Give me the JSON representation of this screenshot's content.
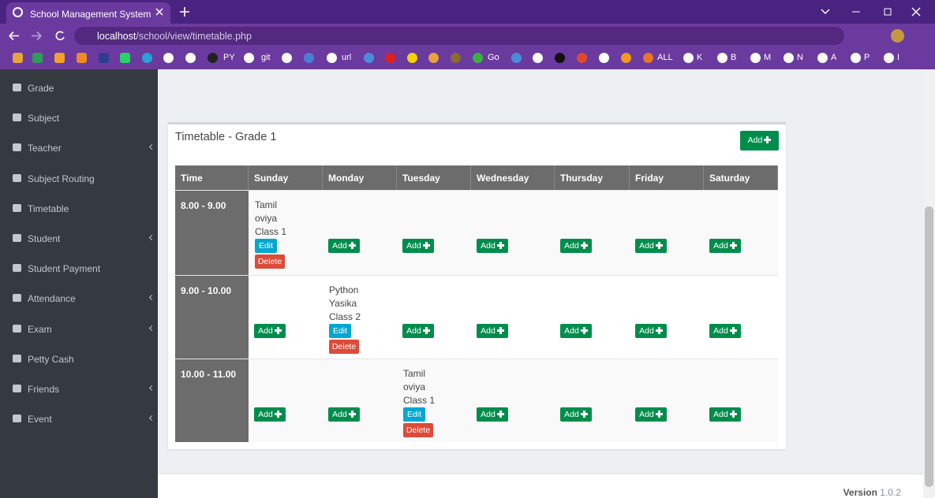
{
  "browser": {
    "tab_title": "School Management System",
    "url_host": "localhost",
    "url_path": "/school/view/timetable.php",
    "bookmarks": [
      "PY",
      "git",
      "url",
      "Go",
      "ALL",
      "K",
      "B",
      "M",
      "N",
      "A",
      "P",
      "I"
    ]
  },
  "sidebar": {
    "items": [
      {
        "label": "Grade",
        "submenu": false
      },
      {
        "label": "Subject",
        "submenu": false
      },
      {
        "label": "Teacher",
        "submenu": true
      },
      {
        "label": "Subject Routing",
        "submenu": false
      },
      {
        "label": "Timetable",
        "submenu": false
      },
      {
        "label": "Student",
        "submenu": true
      },
      {
        "label": "Student Payment",
        "submenu": false
      },
      {
        "label": "Attendance",
        "submenu": true
      },
      {
        "label": "Exam",
        "submenu": true
      },
      {
        "label": "Petty Cash",
        "submenu": false
      },
      {
        "label": "Friends",
        "submenu": true
      },
      {
        "label": "Event",
        "submenu": true
      }
    ]
  },
  "page": {
    "title": "Timetable - Grade 1",
    "add_button": "Add"
  },
  "buttons": {
    "add": "Add",
    "edit": "Edit",
    "delete": "Delete"
  },
  "table": {
    "columns": [
      "Time",
      "Sunday",
      "Monday",
      "Tuesday",
      "Wednesday",
      "Thursday",
      "Friday",
      "Saturday"
    ],
    "rows": [
      {
        "time": "8.00 - 9.00",
        "cells": [
          {
            "subject": "Tamil",
            "teacher": "oviya",
            "class": "Class 1"
          },
          null,
          null,
          null,
          null,
          null,
          null
        ]
      },
      {
        "time": "9.00 - 10.00",
        "cells": [
          null,
          {
            "subject": "Python",
            "teacher": "Yasika",
            "class": "Class 2"
          },
          null,
          null,
          null,
          null,
          null
        ]
      },
      {
        "time": "10.00 - 11.00",
        "cells": [
          null,
          null,
          {
            "subject": "Tamil",
            "teacher": "oviya",
            "class": "Class 1"
          },
          null,
          null,
          null,
          null
        ]
      }
    ]
  },
  "footer": {
    "version_label": "Version",
    "version": "1.0.2"
  }
}
